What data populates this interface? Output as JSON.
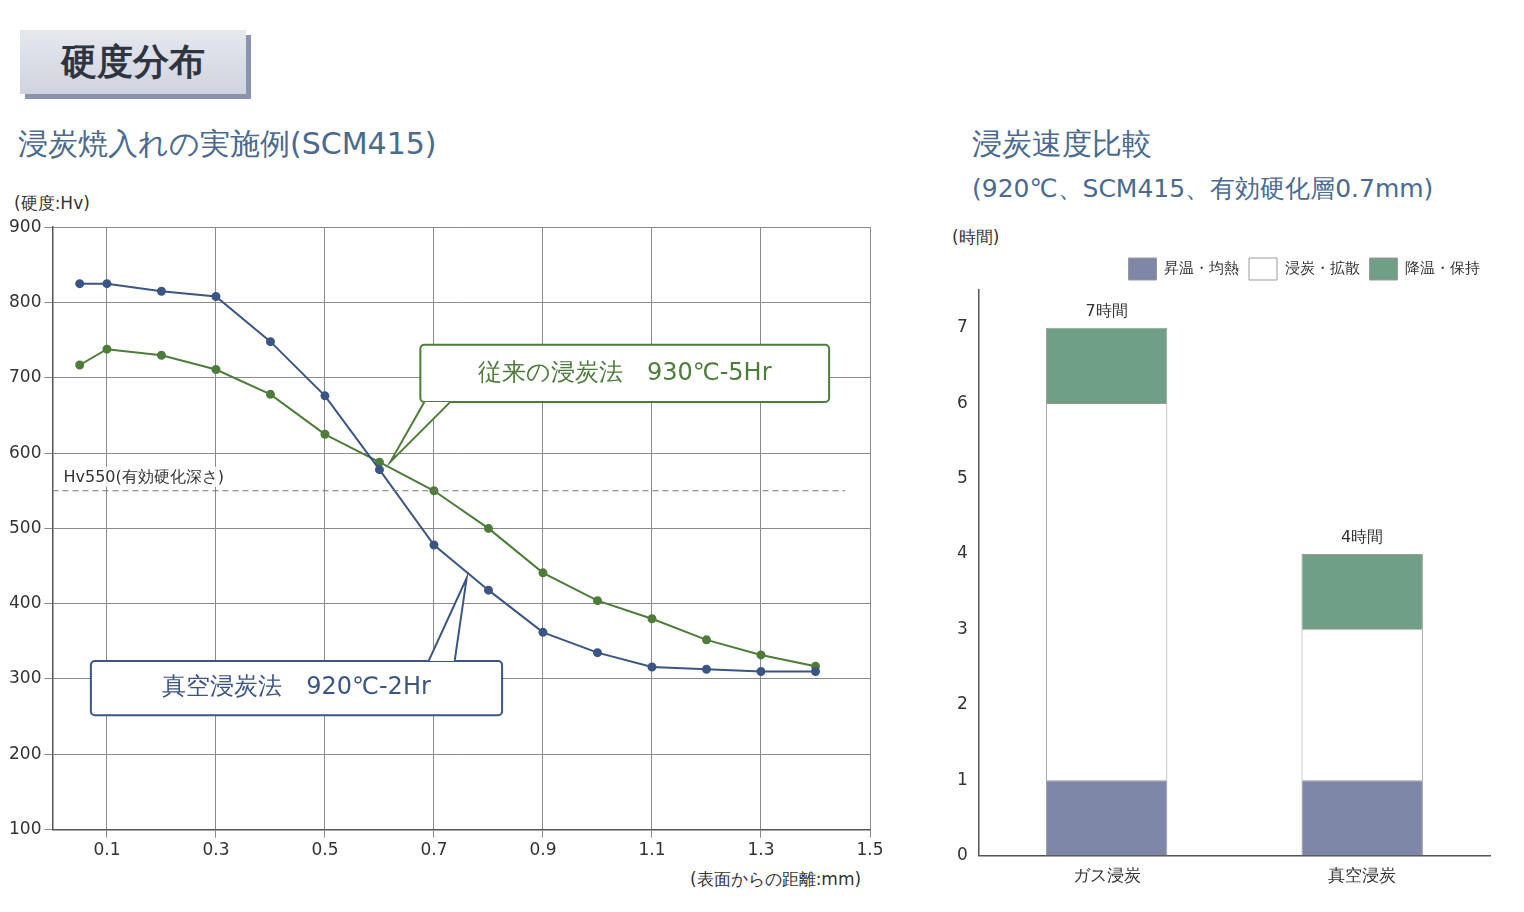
{
  "heading": "硬度分布",
  "chart_data": [
    {
      "type": "line",
      "title": "浸炭焼入れの実施例(SCM415)",
      "y_label": "(硬度:Hv)",
      "x_label": "(表面からの距離:mm)",
      "x": [
        0.05,
        0.1,
        0.2,
        0.3,
        0.4,
        0.5,
        0.6,
        0.7,
        0.8,
        0.9,
        1.0,
        1.1,
        1.2,
        1.3,
        1.4
      ],
      "series": [
        {
          "name": "真空浸炭法　920℃-2Hr",
          "color": "#3b5584",
          "marker": "circle",
          "values": [
            825,
            825,
            815,
            808,
            748,
            676,
            578,
            478,
            418,
            362,
            335,
            316,
            313,
            310,
            310
          ]
        },
        {
          "name": "従来の浸炭法　930℃-5Hr",
          "color": "#4d7c3b",
          "marker": "circle",
          "values": [
            717,
            738,
            730,
            711,
            678,
            625,
            588,
            550,
            500,
            441,
            404,
            380,
            352,
            332,
            317
          ]
        }
      ],
      "xlim": [
        0,
        1.5
      ],
      "xticks": [
        0.1,
        0.3,
        0.5,
        0.7,
        0.9,
        1.1,
        1.3,
        1.5
      ],
      "ylim": [
        100,
        900
      ],
      "yticks": [
        100,
        200,
        300,
        400,
        500,
        600,
        700,
        800,
        900
      ],
      "grid": true,
      "reference_lines": [
        {
          "value": 550,
          "label": "Hv550(有効硬化深さ)",
          "line_style": "dashed"
        }
      ]
    },
    {
      "type": "bar",
      "stacked": true,
      "title": "浸炭速度比較",
      "subtitle": "(920℃、SCM415、有効硬化層0.7mm)",
      "y_label": "(時間)",
      "categories": [
        "ガス浸炭",
        "真空浸炭"
      ],
      "series": [
        {
          "name": "昇温・均熱",
          "color": "#7f87a8",
          "values": [
            1,
            1
          ]
        },
        {
          "name": "浸炭・拡散",
          "color": "#ffffff",
          "values": [
            5,
            2
          ]
        },
        {
          "name": "降温・保持",
          "color": "#6f9f85",
          "values": [
            1,
            1
          ]
        }
      ],
      "total_labels": [
        "7時間",
        "4時間"
      ],
      "ylim": [
        0,
        7.5
      ],
      "yticks": [
        0,
        1,
        2,
        3,
        4,
        5,
        6,
        7
      ],
      "grid": false,
      "legend": "top-right"
    }
  ]
}
